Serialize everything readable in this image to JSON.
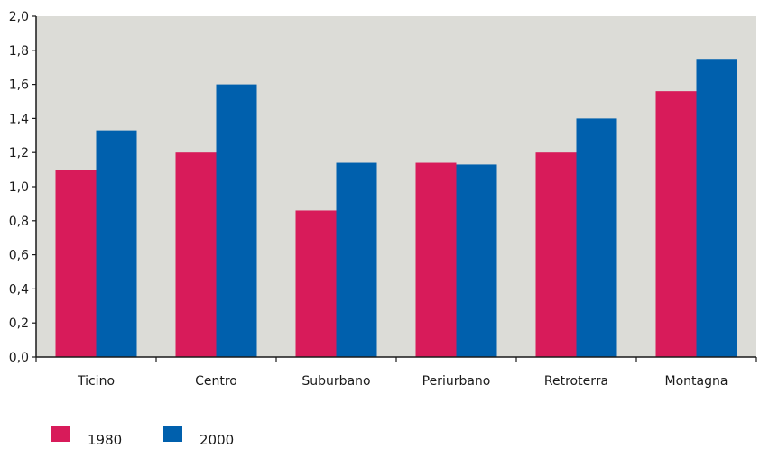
{
  "chart_data": {
    "type": "bar",
    "categories": [
      "Ticino",
      "Centro",
      "Suburbano",
      "Periurbano",
      "Retroterra",
      "Montagna"
    ],
    "series": [
      {
        "name": "1980",
        "color": "#d81b5a",
        "values": [
          1.1,
          1.2,
          0.86,
          1.14,
          1.2,
          1.56
        ]
      },
      {
        "name": "2000",
        "color": "#0060ad",
        "values": [
          1.33,
          1.6,
          1.14,
          1.13,
          1.4,
          1.75
        ]
      }
    ],
    "ylim": [
      0,
      2.0
    ],
    "yticks": [
      "0,0",
      "0,2",
      "0,4",
      "0,6",
      "0,8",
      "1,0",
      "1,2",
      "1,4",
      "1,6",
      "1,8",
      "2,0"
    ],
    "plot_background": "#dcdcd7",
    "grid": false,
    "legend_position": "bottom-left"
  }
}
